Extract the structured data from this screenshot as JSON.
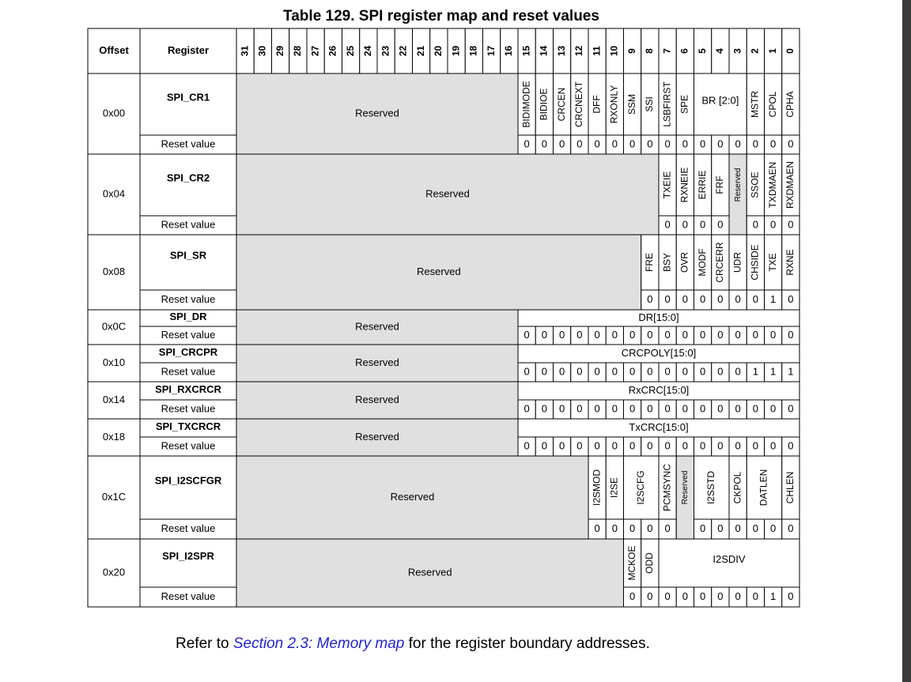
{
  "title": "Table 129. SPI register map and reset values",
  "header": {
    "offset": "Offset",
    "register": "Register",
    "bits": [
      "31",
      "30",
      "29",
      "28",
      "27",
      "26",
      "25",
      "24",
      "23",
      "22",
      "21",
      "20",
      "19",
      "18",
      "17",
      "16",
      "15",
      "14",
      "13",
      "12",
      "11",
      "10",
      "9",
      "8",
      "7",
      "6",
      "5",
      "4",
      "3",
      "2",
      "1",
      "0"
    ]
  },
  "registers": [
    {
      "offset": "0x00",
      "name": "SPI_CR1",
      "reset_label": "Reset value",
      "fields": [
        "Reserved",
        "BIDIMODE",
        "BIDIOE",
        "CRCEN",
        "CRCNEXT",
        "DFF",
        "RXONLY",
        "SSM",
        "SSI",
        "LSBFIRST",
        "SPE",
        "BR [2:0]",
        "MSTR",
        "CPOL",
        "CPHA"
      ],
      "reset": [
        "0",
        "0",
        "0",
        "0",
        "0",
        "0",
        "0",
        "0",
        "0",
        "0",
        "0",
        "0",
        "0",
        "0",
        "0",
        "0"
      ]
    },
    {
      "offset": "0x04",
      "name": "SPI_CR2",
      "reset_label": "Reset value",
      "fields": [
        "Reserved",
        "TXEIE",
        "RXNEIE",
        "ERRIE",
        "FRF",
        "Reserved",
        "SSOE",
        "TXDMAEN",
        "RXDMAEN"
      ],
      "reset": [
        "0",
        "0",
        "0",
        "0",
        "0",
        "0",
        "0"
      ]
    },
    {
      "offset": "0x08",
      "name": "SPI_SR",
      "reset_label": "Reset value",
      "fields": [
        "Reserved",
        "FRE",
        "BSY",
        "OVR",
        "MODF",
        "CRCERR",
        "UDR",
        "CHSIDE",
        "TXE",
        "RXNE"
      ],
      "reset": [
        "0",
        "0",
        "0",
        "0",
        "0",
        "0",
        "0",
        "1",
        "0"
      ]
    },
    {
      "offset": "0x0C",
      "name": "SPI_DR",
      "reset_label": "Reset value",
      "fields": [
        "Reserved",
        "DR[15:0]"
      ],
      "reset": [
        "0",
        "0",
        "0",
        "0",
        "0",
        "0",
        "0",
        "0",
        "0",
        "0",
        "0",
        "0",
        "0",
        "0",
        "0",
        "0"
      ]
    },
    {
      "offset": "0x10",
      "name": "SPI_CRCPR",
      "reset_label": "Reset value",
      "fields": [
        "Reserved",
        "CRCPOLY[15:0]"
      ],
      "reset": [
        "0",
        "0",
        "0",
        "0",
        "0",
        "0",
        "0",
        "0",
        "0",
        "0",
        "0",
        "0",
        "0",
        "1",
        "1",
        "1"
      ]
    },
    {
      "offset": "0x14",
      "name": "SPI_RXCRCR",
      "reset_label": "Reset value",
      "fields": [
        "Reserved",
        "RxCRC[15:0]"
      ],
      "reset": [
        "0",
        "0",
        "0",
        "0",
        "0",
        "0",
        "0",
        "0",
        "0",
        "0",
        "0",
        "0",
        "0",
        "0",
        "0",
        "0"
      ]
    },
    {
      "offset": "0x18",
      "name": "SPI_TXCRCR",
      "reset_label": "Reset value",
      "fields": [
        "Reserved",
        "TxCRC[15:0]"
      ],
      "reset": [
        "0",
        "0",
        "0",
        "0",
        "0",
        "0",
        "0",
        "0",
        "0",
        "0",
        "0",
        "0",
        "0",
        "0",
        "0",
        "0"
      ]
    },
    {
      "offset": "0x1C",
      "name": "SPI_I2SCFGR",
      "reset_label": "Reset value",
      "fields": [
        "Reserved",
        "I2SMOD",
        "I2SE",
        "I2SCFG",
        "PCMSYNC",
        "Reserved",
        "I2SSTD",
        "CKPOL",
        "DATLEN",
        "CHLEN"
      ],
      "reset": [
        "0",
        "0",
        "0",
        "0",
        "0",
        "0",
        "0",
        "0",
        "0",
        "0",
        "0"
      ]
    },
    {
      "offset": "0x20",
      "name": "SPI_I2SPR",
      "reset_label": "Reset value",
      "fields": [
        "Reserved",
        "MCKOE",
        "ODD",
        "I2SDIV"
      ],
      "reset": [
        "0",
        "0",
        "0",
        "0",
        "0",
        "0",
        "0",
        "0",
        "1",
        "0"
      ]
    }
  ],
  "footer": {
    "prefix": "Refer to ",
    "link": "Section 2.3: Memory map",
    "suffix": " for the register boundary addresses."
  }
}
